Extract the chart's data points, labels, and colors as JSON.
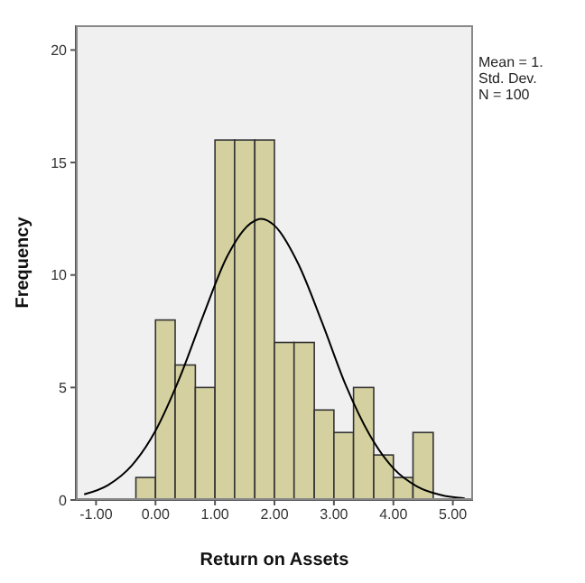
{
  "chart_data": {
    "type": "histogram",
    "xlabel": "Return on Assets",
    "ylabel": "Frequency",
    "annotations": [
      "Mean = 1.",
      "Std. Dev.",
      "N = 100"
    ],
    "bins": [
      -0.33,
      0.0,
      0.33,
      0.67,
      1.0,
      1.33,
      1.67,
      2.0,
      2.33,
      2.67,
      3.0,
      3.33,
      3.67,
      4.0,
      4.33,
      4.67
    ],
    "values": [
      1,
      8,
      6,
      5,
      16,
      16,
      16,
      7,
      7,
      4,
      3,
      5,
      2,
      1,
      3
    ],
    "color": "#d4d0a0",
    "series": [
      {
        "type": "line",
        "color": "#000000",
        "x": [
          -1.2,
          -0.8,
          -0.4,
          0,
          0.4,
          0.8,
          1.2,
          1.6,
          1.78,
          2.0,
          2.4,
          2.8,
          3.2,
          3.6,
          4.0,
          4.4,
          4.8,
          5.2
        ],
        "values": [
          0.25,
          0.66,
          1.53,
          3.08,
          5.39,
          8.18,
          10.8,
          12.3,
          12.5,
          12.2,
          10.5,
          7.9,
          5.1,
          2.9,
          1.41,
          0.6,
          0.22,
          0.07
        ]
      }
    ],
    "xlim": [
      -1.34,
      5.34
    ],
    "ylim": [
      0,
      21.1
    ],
    "xticks": [
      {
        "value": -1,
        "label": "-1.00"
      },
      {
        "value": 0,
        "label": "0.00"
      },
      {
        "value": 1,
        "label": "1.00"
      },
      {
        "value": 2,
        "label": "2.00"
      },
      {
        "value": 3,
        "label": "3.00"
      },
      {
        "value": 4,
        "label": "4.00"
      },
      {
        "value": 5,
        "label": "5.00"
      }
    ],
    "yticks": [
      0,
      5,
      10,
      15,
      20
    ]
  }
}
